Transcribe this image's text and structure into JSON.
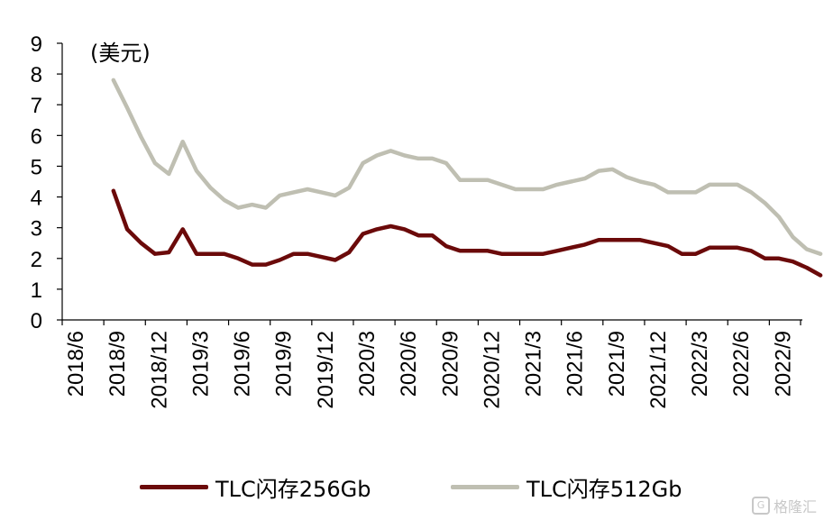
{
  "chart_data": {
    "type": "line",
    "title": "",
    "unit_label": "(美元)",
    "xlabel": "",
    "ylabel": "",
    "ylim": [
      0,
      9
    ],
    "yticks": [
      0,
      1,
      2,
      3,
      4,
      5,
      6,
      7,
      8,
      9
    ],
    "grid": false,
    "legend_position": "bottom",
    "x_tick_labels": [
      "2018/6",
      "2018/9",
      "2018/12",
      "2019/3",
      "2019/6",
      "2019/9",
      "2019/12",
      "2020/3",
      "2020/6",
      "2020/9",
      "2020/12",
      "2021/3",
      "2021/6",
      "2021/9",
      "2021/12",
      "2022/3",
      "2022/6",
      "2022/9"
    ],
    "x": [
      "2018/8",
      "2018/9",
      "2018/10",
      "2018/11",
      "2018/12",
      "2019/1",
      "2019/2",
      "2019/3",
      "2019/4",
      "2019/5",
      "2019/6",
      "2019/7",
      "2019/8",
      "2019/9",
      "2019/10",
      "2019/11",
      "2019/12",
      "2020/1",
      "2020/2",
      "2020/3",
      "2020/4",
      "2020/5",
      "2020/6",
      "2020/7",
      "2020/8",
      "2020/9",
      "2020/10",
      "2020/11",
      "2020/12",
      "2021/1",
      "2021/2",
      "2021/3",
      "2021/4",
      "2021/5",
      "2021/6",
      "2021/7",
      "2021/8",
      "2021/9",
      "2021/10",
      "2021/11",
      "2021/12",
      "2022/1",
      "2022/2",
      "2022/3",
      "2022/4",
      "2022/5",
      "2022/6",
      "2022/7",
      "2022/8",
      "2022/9",
      "2022/10",
      "2022/11"
    ],
    "series": [
      {
        "name": "TLC闪存256Gb",
        "color": "#6b0a0a",
        "values": [
          4.2,
          2.95,
          2.5,
          2.15,
          2.2,
          2.95,
          2.15,
          2.15,
          2.15,
          2.0,
          1.8,
          1.8,
          1.95,
          2.15,
          2.15,
          2.05,
          1.95,
          2.2,
          2.8,
          2.95,
          3.05,
          2.95,
          2.75,
          2.75,
          2.4,
          2.25,
          2.25,
          2.25,
          2.15,
          2.15,
          2.15,
          2.15,
          2.25,
          2.35,
          2.45,
          2.6,
          2.6,
          2.6,
          2.6,
          2.5,
          2.4,
          2.15,
          2.15,
          2.35,
          2.35,
          2.35,
          2.25,
          2.0,
          2.0,
          1.9,
          1.7,
          1.45
        ]
      },
      {
        "name": "TLC闪存512Gb",
        "color": "#bfbfb2",
        "values": [
          7.8,
          6.9,
          5.95,
          5.1,
          4.75,
          5.8,
          4.85,
          4.3,
          3.9,
          3.65,
          3.75,
          3.65,
          4.05,
          4.15,
          4.25,
          4.15,
          4.05,
          4.3,
          5.1,
          5.35,
          5.5,
          5.35,
          5.25,
          5.25,
          5.1,
          4.55,
          4.55,
          4.55,
          4.4,
          4.25,
          4.25,
          4.25,
          4.4,
          4.5,
          4.6,
          4.85,
          4.9,
          4.65,
          4.5,
          4.4,
          4.15,
          4.15,
          4.15,
          4.4,
          4.4,
          4.4,
          4.15,
          3.8,
          3.35,
          2.7,
          2.3,
          2.15
        ]
      }
    ]
  },
  "watermark": {
    "icon": "G",
    "text": "格隆汇"
  }
}
